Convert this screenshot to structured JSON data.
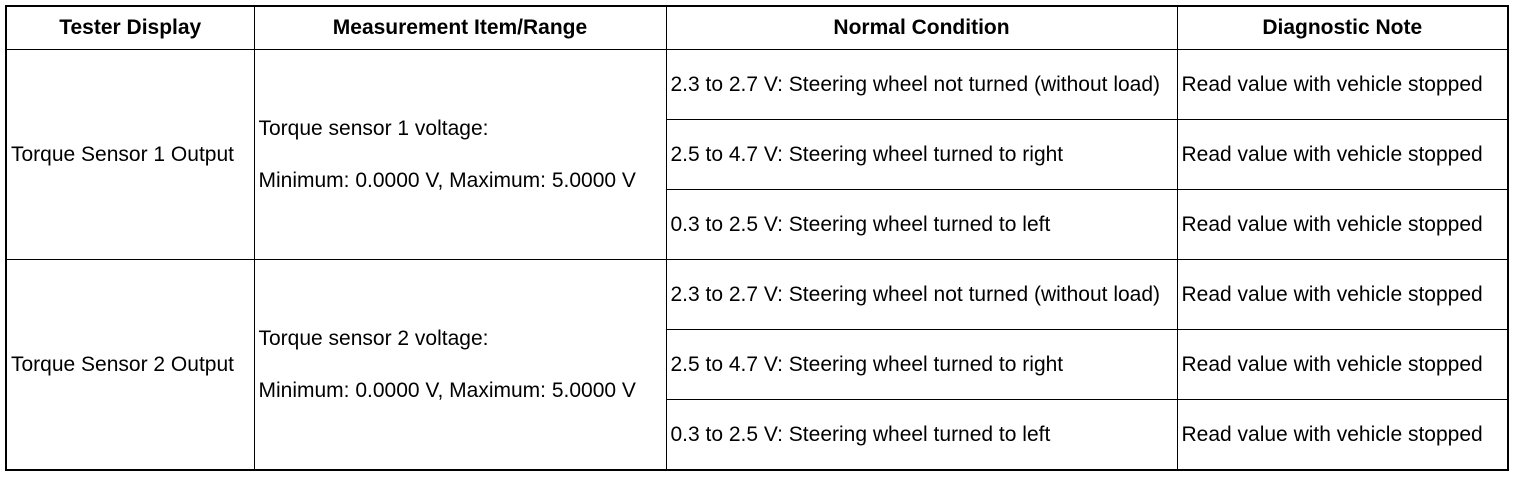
{
  "headers": {
    "tester_display": "Tester Display",
    "measurement": "Measurement Item/Range",
    "normal_condition": "Normal Condition",
    "diagnostic_note": "Diagnostic Note"
  },
  "groups": [
    {
      "tester_display": "Torque Sensor 1 Output",
      "measurement_item": "Torque sensor 1 voltage:",
      "measurement_range": "Minimum: 0.0000 V, Maximum: 5.0000 V",
      "rows": [
        {
          "condition": "2.3 to 2.7 V: Steering wheel not turned (without load)",
          "note": "Read value with vehicle stopped"
        },
        {
          "condition": "2.5 to 4.7 V: Steering wheel turned to right",
          "note": "Read value with vehicle stopped"
        },
        {
          "condition": "0.3 to 2.5 V: Steering wheel turned to left",
          "note": "Read value with vehicle stopped"
        }
      ]
    },
    {
      "tester_display": "Torque Sensor 2 Output",
      "measurement_item": "Torque sensor 2 voltage:",
      "measurement_range": "Minimum: 0.0000 V, Maximum: 5.0000 V",
      "rows": [
        {
          "condition": "2.3 to 2.7 V: Steering wheel not turned (without load)",
          "note": "Read value with vehicle stopped"
        },
        {
          "condition": "2.5 to 4.7 V: Steering wheel turned to right",
          "note": "Read value with vehicle stopped"
        },
        {
          "condition": "0.3 to 2.5 V: Steering wheel turned to left",
          "note": "Read value with vehicle stopped"
        }
      ]
    }
  ]
}
